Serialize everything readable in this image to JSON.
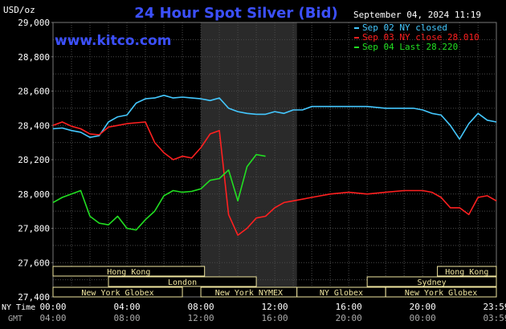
{
  "chart_data": {
    "type": "line",
    "title": "24 Hour Spot Silver (Bid)",
    "ylabel": "USD/oz",
    "ylim": [
      27400,
      29000
    ],
    "y_ticks": [
      "29,000",
      "28,800",
      "28,600",
      "28,400",
      "28,200",
      "28,000",
      "27,800",
      "27,600",
      "27,400"
    ],
    "x_ticks_ny": [
      "00:00",
      "04:00",
      "08:00",
      "12:00",
      "16:00",
      "20:00",
      "23:59"
    ],
    "x_ticks_gmt": [
      "04:00",
      "08:00",
      "12:00",
      "16:00",
      "20:00",
      "00:00",
      "03:59"
    ],
    "x_row_labels": {
      "ny": "NY Time",
      "gmt": "GMT"
    },
    "grid": true,
    "shaded_session": {
      "start_hour": 8.0,
      "end_hour": 13.2
    },
    "legend_position": "top-right",
    "series": [
      {
        "name": "Sep 02 NY closed",
        "color": "#44c8ff",
        "x": [
          0,
          0.5,
          1,
          1.5,
          2,
          2.5,
          3,
          3.5,
          4,
          4.5,
          5,
          5.5,
          6,
          6.5,
          7,
          7.5,
          8,
          8.5,
          9,
          9.5,
          10,
          10.5,
          11,
          11.5,
          12,
          12.5,
          13,
          13.5,
          14,
          15,
          16,
          17,
          18,
          19,
          19.5,
          20,
          20.5,
          21,
          21.5,
          22,
          22.5,
          23,
          23.5,
          23.99
        ],
        "y": [
          28380,
          28385,
          28370,
          28360,
          28330,
          28340,
          28420,
          28450,
          28460,
          28530,
          28555,
          28560,
          28575,
          28560,
          28565,
          28560,
          28555,
          28545,
          28560,
          28500,
          28480,
          28470,
          28465,
          28465,
          28480,
          28470,
          28490,
          28490,
          28510,
          28510,
          28510,
          28510,
          28500,
          28500,
          28500,
          28490,
          28470,
          28460,
          28400,
          28320,
          28410,
          28470,
          28430,
          28420
        ]
      },
      {
        "name": "Sep 03 NY close 28.010",
        "color": "#ff2020",
        "x": [
          0,
          0.5,
          1,
          1.5,
          2,
          2.5,
          3,
          3.5,
          4,
          4.5,
          5,
          5.5,
          6,
          6.5,
          7,
          7.5,
          8,
          8.5,
          9,
          9.5,
          10,
          10.5,
          11,
          11.5,
          12,
          12.5,
          13,
          14,
          15,
          16,
          17,
          18,
          19,
          20,
          20.5,
          21,
          21.5,
          22,
          22.5,
          23,
          23.5,
          23.99
        ],
        "y": [
          28400,
          28420,
          28395,
          28380,
          28350,
          28345,
          28390,
          28400,
          28410,
          28415,
          28420,
          28300,
          28240,
          28200,
          28220,
          28210,
          28270,
          28350,
          28370,
          27880,
          27760,
          27800,
          27860,
          27870,
          27920,
          27950,
          27960,
          27980,
          28000,
          28010,
          28000,
          28010,
          28020,
          28020,
          28010,
          27980,
          27920,
          27920,
          27880,
          27980,
          27990,
          27960
        ]
      },
      {
        "name": "Sep 04 Last 28.220",
        "color": "#22e022",
        "x": [
          0,
          0.5,
          1,
          1.5,
          2,
          2.5,
          3,
          3.5,
          4,
          4.5,
          5,
          5.5,
          6,
          6.5,
          7,
          7.5,
          8,
          8.5,
          9,
          9.5,
          10,
          10.5,
          11,
          11.5
        ],
        "y": [
          27950,
          27980,
          28000,
          28020,
          27870,
          27830,
          27820,
          27870,
          27800,
          27790,
          27850,
          27900,
          27990,
          28020,
          28010,
          28015,
          28030,
          28080,
          28090,
          28140,
          27960,
          28160,
          28230,
          28220
        ]
      }
    ]
  },
  "header": {
    "title": "24 Hour Spot Silver (Bid)",
    "datetime": "September 04, 2024 11:19"
  },
  "watermark": {
    "text": "www.kitco.com"
  },
  "legend": [
    {
      "label": "Sep 02 NY closed",
      "color": "#44c8ff"
    },
    {
      "label": "Sep 03 NY close 28.010",
      "color": "#ff2020"
    },
    {
      "label": "Sep 04 Last 28.220",
      "color": "#22e022"
    }
  ],
  "sessions": [
    {
      "label": "Hong Kong",
      "start": 0,
      "end": 8.2,
      "row": 0
    },
    {
      "label": "Hong Kong",
      "start": 20.8,
      "end": 23.99,
      "row": 0
    },
    {
      "label": "London",
      "start": 3.0,
      "end": 11.0,
      "row": 1
    },
    {
      "label": "Sydney",
      "start": 17.0,
      "end": 23.99,
      "row": 1
    },
    {
      "label": "New York Globex",
      "start": 0,
      "end": 7.0,
      "row": 2
    },
    {
      "label": "New York NYMEX",
      "start": 8.0,
      "end": 13.2,
      "row": 2
    },
    {
      "label": "NY Globex",
      "start": 13.2,
      "end": 18.0,
      "row": 2
    },
    {
      "label": "New York Globex",
      "start": 18.0,
      "end": 23.99,
      "row": 2
    }
  ]
}
